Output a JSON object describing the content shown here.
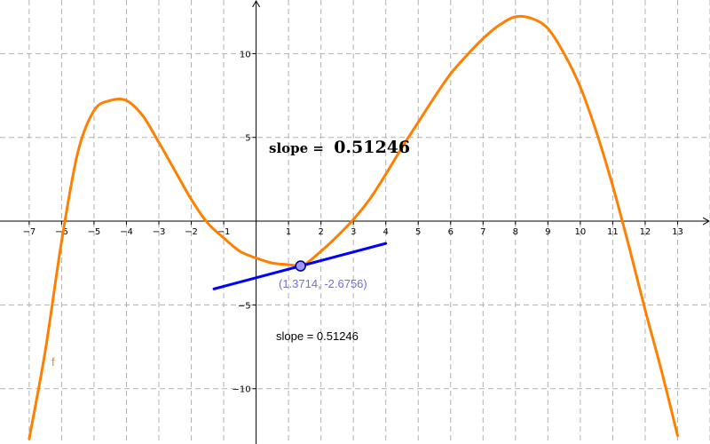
{
  "chart_data": {
    "type": "line",
    "title": "",
    "xlabel": "",
    "ylabel": "",
    "xlim": [
      -7.9,
      14.0
    ],
    "ylim": [
      -13.3,
      13.2
    ],
    "x_tick_values": [
      -7,
      -6,
      -5,
      -4,
      -3,
      -2,
      -1,
      1,
      2,
      3,
      4,
      5,
      6,
      7,
      8,
      9,
      10,
      11,
      12,
      13
    ],
    "y_tick_values": [
      -10,
      -5,
      5,
      10
    ],
    "grid": true,
    "series": [
      {
        "name": "f",
        "color": "#ff8000",
        "x": [
          -7.0,
          -6.5,
          -6.0,
          -5.5,
          -5.0,
          -4.5,
          -4.0,
          -3.5,
          -3.0,
          -2.5,
          -2.0,
          -1.5,
          -1.0,
          -0.5,
          0.0,
          0.5,
          1.0,
          1.3714,
          1.5,
          2.0,
          2.5,
          3.0,
          3.5,
          4.0,
          4.5,
          5.0,
          5.5,
          6.0,
          6.5,
          7.0,
          7.5,
          8.0,
          8.5,
          9.0,
          9.5,
          10.0,
          10.5,
          11.0,
          11.5,
          12.0,
          12.5,
          13.0
        ],
        "y": [
          -13.0,
          -7.7,
          -1.2,
          4.1,
          6.6,
          7.2,
          7.2,
          6.3,
          4.7,
          3.0,
          1.3,
          -0.1,
          -1.0,
          -1.8,
          -2.2,
          -2.5,
          -2.6,
          -2.68,
          -2.6,
          -1.8,
          -0.9,
          0.1,
          1.3,
          2.8,
          4.4,
          5.9,
          7.4,
          8.8,
          9.9,
          10.9,
          11.7,
          12.2,
          12.1,
          11.5,
          10.0,
          8.0,
          5.3,
          2.1,
          -1.5,
          -5.3,
          -8.9,
          -12.8
        ]
      }
    ]
  },
  "tangent": {
    "color": "#0000ff",
    "slope": 0.51246,
    "point": {
      "x": 1.3714,
      "y": -2.6756
    },
    "x_from": -1.3,
    "x_to": 4.0
  },
  "point": {
    "label": "(1.3714, -2.6756)",
    "fill": "#9999ff",
    "stroke": "#000080",
    "label_color": "#6f6fd6"
  },
  "function_label": "f",
  "captions": {
    "big_prefix": "slope = ",
    "big_value": "0.51246",
    "small": "slope = 0.51246"
  }
}
